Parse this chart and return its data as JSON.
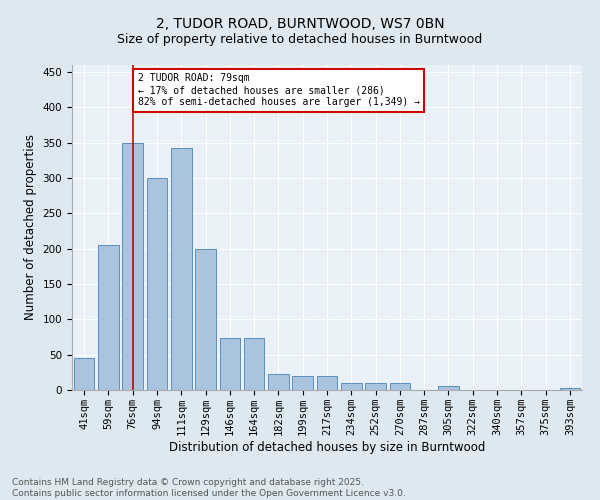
{
  "title1": "2, TUDOR ROAD, BURNTWOOD, WS7 0BN",
  "title2": "Size of property relative to detached houses in Burntwood",
  "xlabel": "Distribution of detached houses by size in Burntwood",
  "ylabel": "Number of detached properties",
  "categories": [
    "41sqm",
    "59sqm",
    "76sqm",
    "94sqm",
    "111sqm",
    "129sqm",
    "146sqm",
    "164sqm",
    "182sqm",
    "199sqm",
    "217sqm",
    "234sqm",
    "252sqm",
    "270sqm",
    "287sqm",
    "305sqm",
    "322sqm",
    "340sqm",
    "357sqm",
    "375sqm",
    "393sqm"
  ],
  "values": [
    45,
    205,
    350,
    300,
    343,
    200,
    73,
    73,
    23,
    20,
    20,
    10,
    10,
    10,
    0,
    5,
    0,
    0,
    0,
    0,
    3
  ],
  "bar_color": "#aac4e0",
  "bar_edge_color": "#5a8fbf",
  "vline_x": 2,
  "vline_color": "#cc0000",
  "annotation_text": "2 TUDOR ROAD: 79sqm\n← 17% of detached houses are smaller (286)\n82% of semi-detached houses are larger (1,349) →",
  "annotation_box_color": "#ffffff",
  "annotation_box_edge": "#cc0000",
  "ylim": [
    0,
    460
  ],
  "yticks": [
    0,
    50,
    100,
    150,
    200,
    250,
    300,
    350,
    400,
    450
  ],
  "bg_color": "#dde8f0",
  "plot_bg_color": "#eaf0f8",
  "footer_text": "Contains HM Land Registry data © Crown copyright and database right 2025.\nContains public sector information licensed under the Open Government Licence v3.0.",
  "title1_fontsize": 10,
  "title2_fontsize": 9,
  "xlabel_fontsize": 8.5,
  "ylabel_fontsize": 8.5,
  "tick_fontsize": 7.5,
  "footer_fontsize": 6.5
}
